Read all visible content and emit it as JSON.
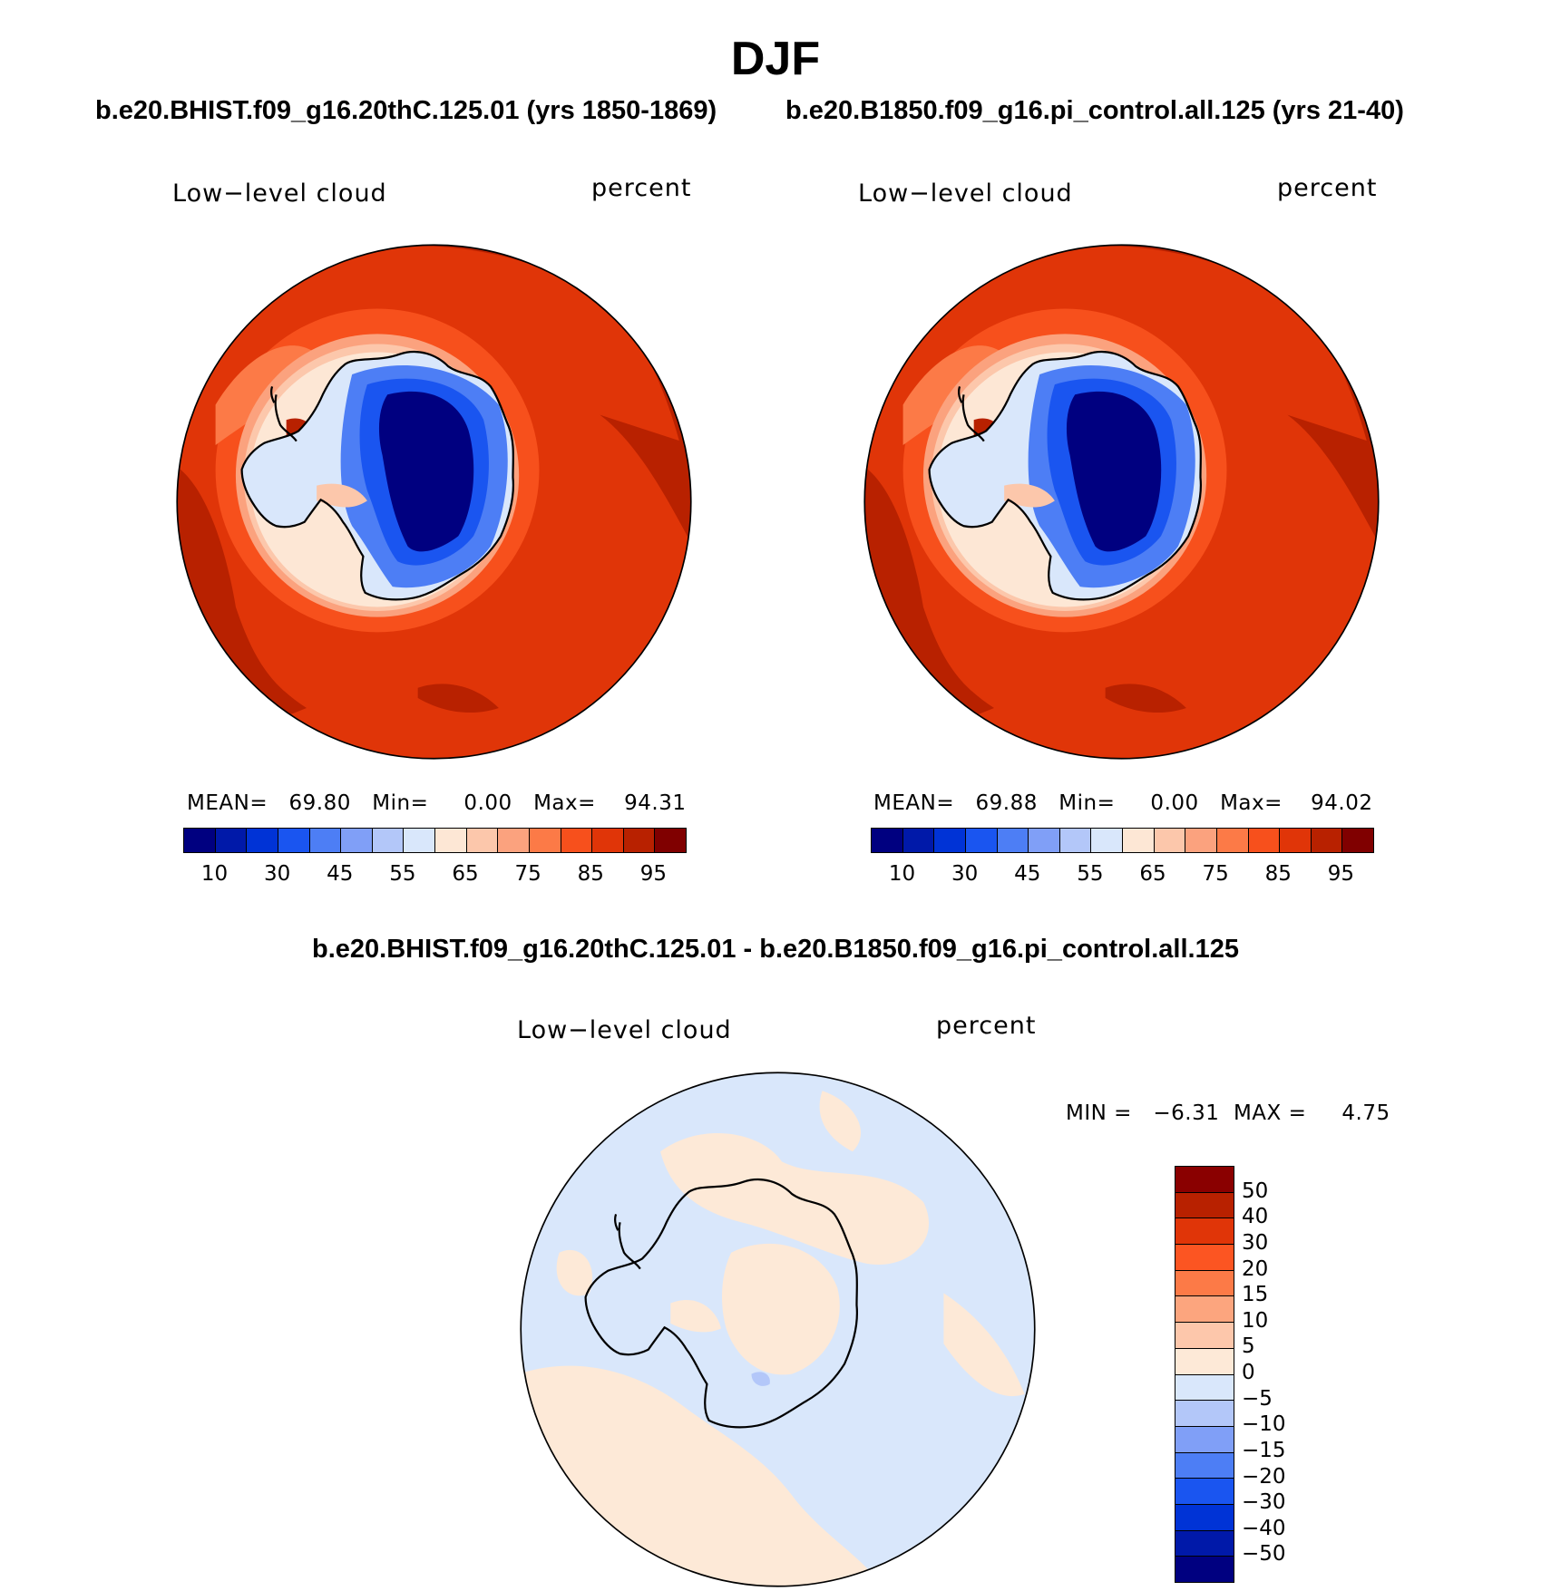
{
  "title": "DJF",
  "top_left": {
    "subtitle": "b.e20.BHIST.f09_g16.20thC.125.01 (yrs 1850-1869)",
    "variable": "Low−level cloud",
    "units": "percent",
    "stats": "MEAN=   69.80   Min=     0.00   Max=    94.31",
    "mean": 69.8,
    "min": 0.0,
    "max": 94.31
  },
  "top_right": {
    "subtitle": "b.e20.B1850.f09_g16.pi_control.all.125 (yrs 21-40)",
    "variable": "Low−level cloud",
    "units": "percent",
    "stats": "MEAN=   69.88   Min=     0.00   Max=    94.02",
    "mean": 69.88,
    "min": 0.0,
    "max": 94.02
  },
  "bottom": {
    "subtitle": "b.e20.BHIST.f09_g16.20thC.125.01 - b.e20.B1850.f09_g16.pi_control.all.125",
    "variable": "Low−level cloud",
    "units": "percent",
    "stats": "MIN =   −6.31  MAX =     4.75",
    "min": -6.31,
    "max": 4.75
  },
  "colorbar_abs": {
    "colors": [
      "#000080",
      "#0019a9",
      "#0033d6",
      "#1a55f0",
      "#4d7ef5",
      "#809ff7",
      "#b3c7f9",
      "#d9e7fb",
      "#fde7d5",
      "#fcc7ab",
      "#fba27e",
      "#fc7a47",
      "#f7501c",
      "#e03508",
      "#b82100",
      "#800000"
    ],
    "tick_labels": [
      "10",
      "30",
      "45",
      "55",
      "65",
      "75",
      "85",
      "95"
    ]
  },
  "colorbar_diff": {
    "colors_top_to_bottom": [
      "#8a0000",
      "#b82100",
      "#e03508",
      "#fc5522",
      "#fc7a47",
      "#fca57e",
      "#fdc7ab",
      "#fde9d7",
      "#d9e7fb",
      "#b3c7f9",
      "#809ff7",
      "#4d7ef5",
      "#1a55f0",
      "#0033d6",
      "#0019a9",
      "#000080"
    ],
    "tick_labels": [
      "50",
      "40",
      "30",
      "20",
      "15",
      "10",
      "5",
      "0",
      "−5",
      "−10",
      "−15",
      "−20",
      "−30",
      "−40",
      "−50"
    ]
  }
}
